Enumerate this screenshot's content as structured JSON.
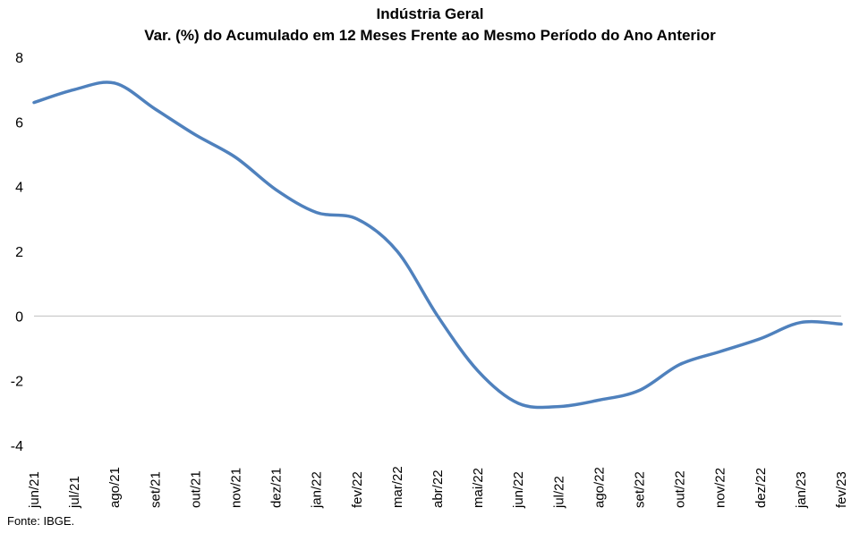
{
  "chart_data": {
    "type": "line",
    "title": "Indústria Geral",
    "subtitle": "Var. (%) do Acumulado em 12 Meses Frente ao Mesmo Período do Ano Anterior",
    "xlabel": "",
    "ylabel": "",
    "ylim": [
      -4,
      8
    ],
    "yticks": [
      "8",
      "6",
      "4",
      "2",
      "0",
      "-2",
      "-4"
    ],
    "categories": [
      "jun/21",
      "jul/21",
      "ago/21",
      "set/21",
      "out/21",
      "nov/21",
      "dez/21",
      "jan/22",
      "fev/22",
      "mar/22",
      "abr/22",
      "mai/22",
      "jun/22",
      "jul/22",
      "ago/22",
      "set/22",
      "out/22",
      "nov/22",
      "dez/22",
      "jan/23",
      "fev/23"
    ],
    "series": [
      {
        "values": [
          6.6,
          7.0,
          7.2,
          6.4,
          5.6,
          4.9,
          3.9,
          3.2,
          3.0,
          2.0,
          0.0,
          -1.7,
          -2.7,
          -2.8,
          -2.6,
          -2.3,
          -1.5,
          -1.1,
          -0.7,
          -0.2,
          -0.25
        ]
      }
    ],
    "grid": false,
    "legend": "none",
    "line_color": "#4F81BD",
    "zero_line_color": "#BFBFBF"
  },
  "footer": {
    "source": "Fonte: IBGE."
  }
}
